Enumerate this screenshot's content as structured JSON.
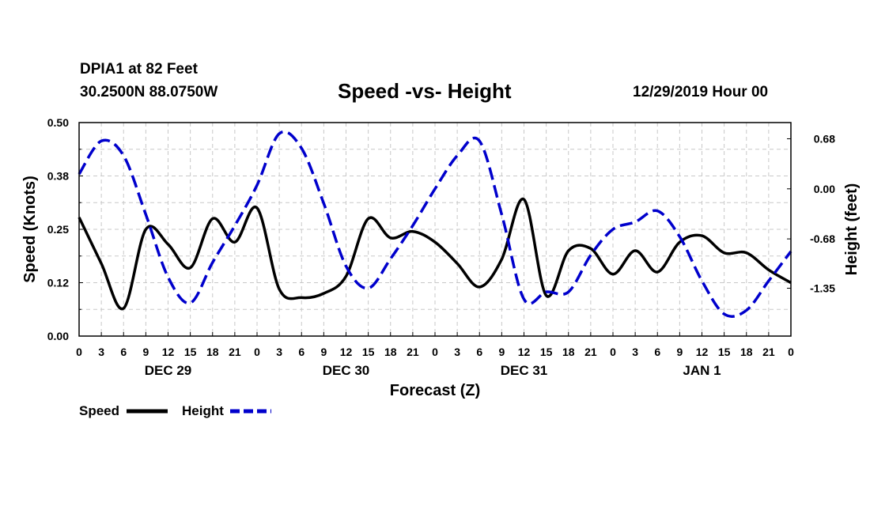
{
  "header": {
    "station": "DPIA1 at 82 Feet",
    "coords": "30.2500N 88.0750W",
    "title": "Speed -vs- Height",
    "datetime": "12/29/2019 Hour 00"
  },
  "chart_data": {
    "type": "line",
    "title": "Speed -vs- Height",
    "xlabel": "Forecast (Z)",
    "ylabel_left": "Speed (Knots)",
    "ylabel_right": "Height (feet)",
    "x_hours": [
      0,
      3,
      6,
      9,
      12,
      15,
      18,
      21,
      24,
      27,
      30,
      33,
      36,
      39,
      42,
      45,
      48,
      51,
      54,
      57,
      60,
      63,
      66,
      69,
      72,
      75,
      78,
      81,
      84,
      87,
      90,
      93,
      96
    ],
    "x_tick_labels": [
      "0",
      "3",
      "6",
      "9",
      "12",
      "15",
      "18",
      "21",
      "0",
      "3",
      "6",
      "9",
      "12",
      "15",
      "18",
      "21",
      "0",
      "3",
      "6",
      "9",
      "12",
      "15",
      "18",
      "21",
      "0",
      "3",
      "6",
      "9",
      "12",
      "15",
      "18",
      "21",
      "0"
    ],
    "day_labels": [
      {
        "label": "DEC 29",
        "hour": 12
      },
      {
        "label": "DEC 30",
        "hour": 36
      },
      {
        "label": "DEC 31",
        "hour": 60
      },
      {
        "label": "JAN 1",
        "hour": 84
      }
    ],
    "xlim": [
      0,
      96
    ],
    "left_axis": {
      "ylim": [
        0,
        0.5
      ],
      "ticks": [
        0.0,
        0.125,
        0.25,
        0.375,
        0.5
      ],
      "tick_labels": [
        "0.00",
        "0.12",
        "0.25",
        "0.38",
        "0.50"
      ]
    },
    "right_axis": {
      "ylim": [
        -2.0,
        0.9
      ],
      "ticks": [
        -1.35,
        -0.68,
        0.0,
        0.68
      ],
      "tick_labels": [
        "-1.35",
        "-0.68",
        "0.00",
        "0.68"
      ]
    },
    "grid": true,
    "series": [
      {
        "name": "Speed",
        "axis": "left",
        "color": "#000000",
        "style": "solid",
        "points": [
          [
            0,
            0.278
          ],
          [
            3,
            0.17
          ],
          [
            6,
            0.065
          ],
          [
            9,
            0.25
          ],
          [
            12,
            0.215
          ],
          [
            15,
            0.16
          ],
          [
            18,
            0.275
          ],
          [
            21,
            0.22
          ],
          [
            24,
            0.3
          ],
          [
            27,
            0.11
          ],
          [
            30,
            0.09
          ],
          [
            33,
            0.1
          ],
          [
            36,
            0.14
          ],
          [
            39,
            0.275
          ],
          [
            42,
            0.23
          ],
          [
            45,
            0.245
          ],
          [
            48,
            0.22
          ],
          [
            51,
            0.17
          ],
          [
            54,
            0.115
          ],
          [
            57,
            0.18
          ],
          [
            60,
            0.32
          ],
          [
            63,
            0.095
          ],
          [
            66,
            0.2
          ],
          [
            69,
            0.205
          ],
          [
            72,
            0.145
          ],
          [
            75,
            0.2
          ],
          [
            78,
            0.15
          ],
          [
            81,
            0.22
          ],
          [
            84,
            0.235
          ],
          [
            87,
            0.195
          ],
          [
            90,
            0.195
          ],
          [
            93,
            0.155
          ],
          [
            96,
            0.125
          ]
        ]
      },
      {
        "name": "Height",
        "axis": "right",
        "color": "#0000cc",
        "style": "dashed",
        "points": [
          [
            0,
            0.2
          ],
          [
            3,
            0.65
          ],
          [
            6,
            0.45
          ],
          [
            9,
            -0.35
          ],
          [
            12,
            -1.2
          ],
          [
            15,
            -1.55
          ],
          [
            18,
            -1.0
          ],
          [
            21,
            -0.5
          ],
          [
            24,
            0.05
          ],
          [
            27,
            0.75
          ],
          [
            30,
            0.55
          ],
          [
            33,
            -0.2
          ],
          [
            36,
            -1.05
          ],
          [
            39,
            -1.35
          ],
          [
            42,
            -0.95
          ],
          [
            45,
            -0.5
          ],
          [
            48,
            0.0
          ],
          [
            51,
            0.45
          ],
          [
            54,
            0.65
          ],
          [
            57,
            -0.35
          ],
          [
            60,
            -1.5
          ],
          [
            63,
            -1.4
          ],
          [
            66,
            -1.4
          ],
          [
            69,
            -0.9
          ],
          [
            72,
            -0.55
          ],
          [
            75,
            -0.45
          ],
          [
            78,
            -0.3
          ],
          [
            81,
            -0.65
          ],
          [
            84,
            -1.25
          ],
          [
            87,
            -1.7
          ],
          [
            90,
            -1.65
          ],
          [
            93,
            -1.25
          ],
          [
            96,
            -0.85
          ]
        ]
      }
    ],
    "legend": [
      {
        "label": "Speed",
        "color": "#000000",
        "style": "solid"
      },
      {
        "label": "Height",
        "color": "#0000cc",
        "style": "dashed"
      }
    ]
  }
}
